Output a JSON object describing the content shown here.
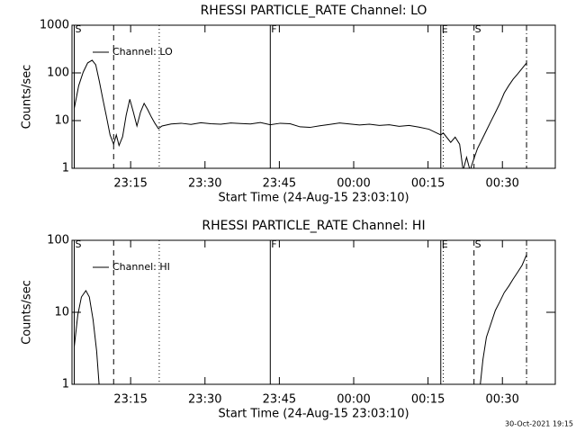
{
  "chart_data": [
    {
      "type": "line",
      "title": "RHESSI PARTICLE_RATE Channel: LO",
      "xlabel": "Start Time (24-Aug-15 23:03:10)",
      "ylabel": "Counts/sec",
      "log_y": true,
      "ylim": [
        1,
        1000
      ],
      "yticks": [
        1,
        10,
        100,
        1000
      ],
      "xlim": [
        0,
        97.5
      ],
      "xticks": [
        {
          "value": 11.83,
          "label": "23:15"
        },
        {
          "value": 26.83,
          "label": "23:30"
        },
        {
          "value": 41.83,
          "label": "23:45"
        },
        {
          "value": 56.83,
          "label": "00:00"
        },
        {
          "value": 71.83,
          "label": "00:15"
        },
        {
          "value": 86.83,
          "label": "00:30"
        }
      ],
      "x": [
        0.45,
        1.35,
        2.26,
        3.16,
        4.06,
        4.79,
        5.51,
        6.23,
        6.96,
        7.68,
        8.4,
        8.94,
        9.49,
        10.21,
        10.93,
        11.66,
        12.38,
        13.1,
        13.82,
        14.55,
        15.27,
        15.99,
        16.72,
        17.44,
        18.16,
        20,
        22,
        24,
        26,
        28,
        30,
        32,
        34,
        36,
        38,
        40,
        42,
        44,
        46,
        48,
        50,
        52,
        54,
        56,
        58,
        60,
        62,
        64,
        66,
        68,
        70,
        72,
        74.4,
        74.9,
        76.4,
        77.3,
        78.2,
        78.9,
        79.6,
        80.3,
        81.0,
        81.8,
        82.7,
        83.6,
        84.5,
        85.4,
        86.3,
        87.2,
        88.1,
        89.0,
        89.9,
        90.8,
        91.7
      ],
      "series": [
        {
          "name": "Channel: LO",
          "color": "#000000",
          "values": [
            18,
            54,
            104,
            162,
            184,
            148,
            67,
            28,
            12,
            5,
            3.2,
            5,
            3,
            4.6,
            13,
            28,
            15,
            7.7,
            15,
            23,
            17,
            12,
            8.8,
            6.8,
            7.7,
            8.5,
            8.8,
            8.3,
            9,
            8.6,
            8.4,
            8.9,
            8.7,
            8.5,
            9.1,
            8.2,
            8.8,
            8.6,
            7.4,
            7.2,
            7.8,
            8.3,
            8.9,
            8.5,
            8.1,
            8.4,
            7.9,
            8.2,
            7.6,
            7.9,
            7.3,
            6.6,
            5,
            5.5,
            3.5,
            4.5,
            3.2,
            0.9,
            1.7,
            0.9,
            1.5,
            2.6,
            4,
            6.2,
            9.6,
            14.7,
            22.8,
            38,
            54,
            74,
            95,
            124,
            162
          ]
        }
      ],
      "markers": [
        {
          "x": 0.45,
          "style": "solid",
          "label": "S"
        },
        {
          "x": 8.4,
          "style": "dashed",
          "label": null
        },
        {
          "x": 17.6,
          "style": "dotted",
          "label": null
        },
        {
          "x": 40.0,
          "style": "solid",
          "label": "F"
        },
        {
          "x": 74.4,
          "style": "solid",
          "label": "E"
        },
        {
          "x": 74.9,
          "style": "dotted",
          "label": null
        },
        {
          "x": 81.1,
          "style": "dashed",
          "label": "S"
        },
        {
          "x": 91.7,
          "style": "dashdot",
          "label": null
        }
      ]
    },
    {
      "type": "line",
      "title": "RHESSI PARTICLE_RATE Channel: HI",
      "xlabel": "Start Time (24-Aug-15 23:03:10)",
      "ylabel": "Counts/sec",
      "log_y": true,
      "ylim": [
        1,
        100
      ],
      "yticks": [
        1,
        10,
        100
      ],
      "xlim": [
        0,
        97.5
      ],
      "xticks": [
        {
          "value": 11.83,
          "label": "23:15"
        },
        {
          "value": 26.83,
          "label": "23:30"
        },
        {
          "value": 41.83,
          "label": "23:45"
        },
        {
          "value": 56.83,
          "label": "00:00"
        },
        {
          "value": 71.83,
          "label": "00:15"
        },
        {
          "value": 86.83,
          "label": "00:30"
        }
      ],
      "x": [
        0.45,
        1.17,
        1.9,
        2.8,
        3.5,
        4.25,
        4.97,
        5.51,
        40,
        82.3,
        82.9,
        83.6,
        84.5,
        85.4,
        86.3,
        87.2,
        88.1,
        89.0,
        89.9,
        90.8,
        91.7
      ],
      "series": [
        {
          "name": "Channel: HI",
          "color": "#000000",
          "values": [
            3.3,
            9.2,
            16.3,
            20,
            16.3,
            7.9,
            2.9,
            0.9,
            null,
            0.9,
            2.2,
            4.5,
            6.9,
            10.6,
            14,
            18.8,
            23,
            29,
            36,
            45,
            63
          ]
        }
      ],
      "markers": [
        {
          "x": 0.45,
          "style": "solid",
          "label": "S"
        },
        {
          "x": 8.4,
          "style": "dashed",
          "label": null
        },
        {
          "x": 17.6,
          "style": "dotted",
          "label": null
        },
        {
          "x": 40.0,
          "style": "solid",
          "label": "F"
        },
        {
          "x": 74.4,
          "style": "solid",
          "label": "E"
        },
        {
          "x": 74.9,
          "style": "dotted",
          "label": null
        },
        {
          "x": 81.1,
          "style": "dashed",
          "label": "S"
        },
        {
          "x": 91.7,
          "style": "dashdot",
          "label": null
        }
      ]
    }
  ],
  "footer": "30-Oct-2021 19:15"
}
